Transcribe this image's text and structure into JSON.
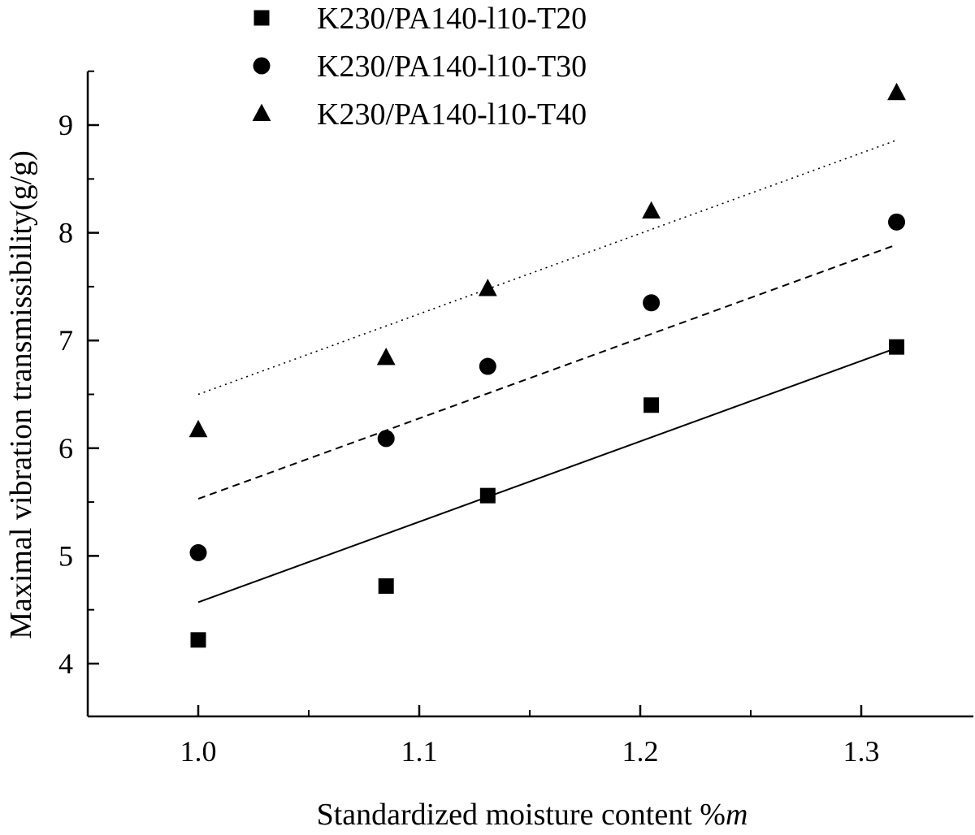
{
  "chart_data": {
    "type": "scatter",
    "title": "",
    "xlabel": "Standardized moisture content %",
    "xlabel_suffix": "m",
    "ylabel": "Maximal vibration transmissibility(g/g)",
    "xlim": [
      0.95,
      1.35
    ],
    "ylim": [
      3.5,
      9.5
    ],
    "x_ticks": [
      1.0,
      1.1,
      1.2,
      1.3
    ],
    "x_tick_labels": [
      "1.0",
      "1.1",
      "1.2",
      "1.3"
    ],
    "x_minor_ticks": [
      1.05,
      1.15,
      1.25
    ],
    "y_ticks": [
      4,
      5,
      6,
      7,
      8,
      9
    ],
    "y_tick_labels": [
      "4",
      "5",
      "6",
      "7",
      "8",
      "9"
    ],
    "grid": false,
    "legend_position": "top-left",
    "x": [
      1.0,
      1.085,
      1.131,
      1.205,
      1.316
    ],
    "series": [
      {
        "name": "K230/PA140-l10-T20",
        "marker": "square",
        "values": [
          4.22,
          4.72,
          5.56,
          6.4,
          6.94
        ],
        "fit_line": {
          "style": "solid",
          "x": [
            1.0,
            1.316
          ],
          "y": [
            4.57,
            6.93
          ]
        }
      },
      {
        "name": "K230/PA140-l10-T30",
        "marker": "circle",
        "values": [
          5.03,
          6.09,
          6.76,
          7.35,
          8.1
        ],
        "fit_line": {
          "style": "dashed",
          "x": [
            1.0,
            1.316
          ],
          "y": [
            5.53,
            7.89
          ]
        }
      },
      {
        "name": "K230/PA140-l10-T40",
        "marker": "triangle",
        "values": [
          6.17,
          6.84,
          7.48,
          8.2,
          9.3
        ],
        "fit_line": {
          "style": "dotted",
          "x": [
            1.0,
            1.316
          ],
          "y": [
            6.5,
            8.86
          ]
        }
      }
    ],
    "colors": {
      "marks": "#000000",
      "background": "#ffffff"
    }
  }
}
